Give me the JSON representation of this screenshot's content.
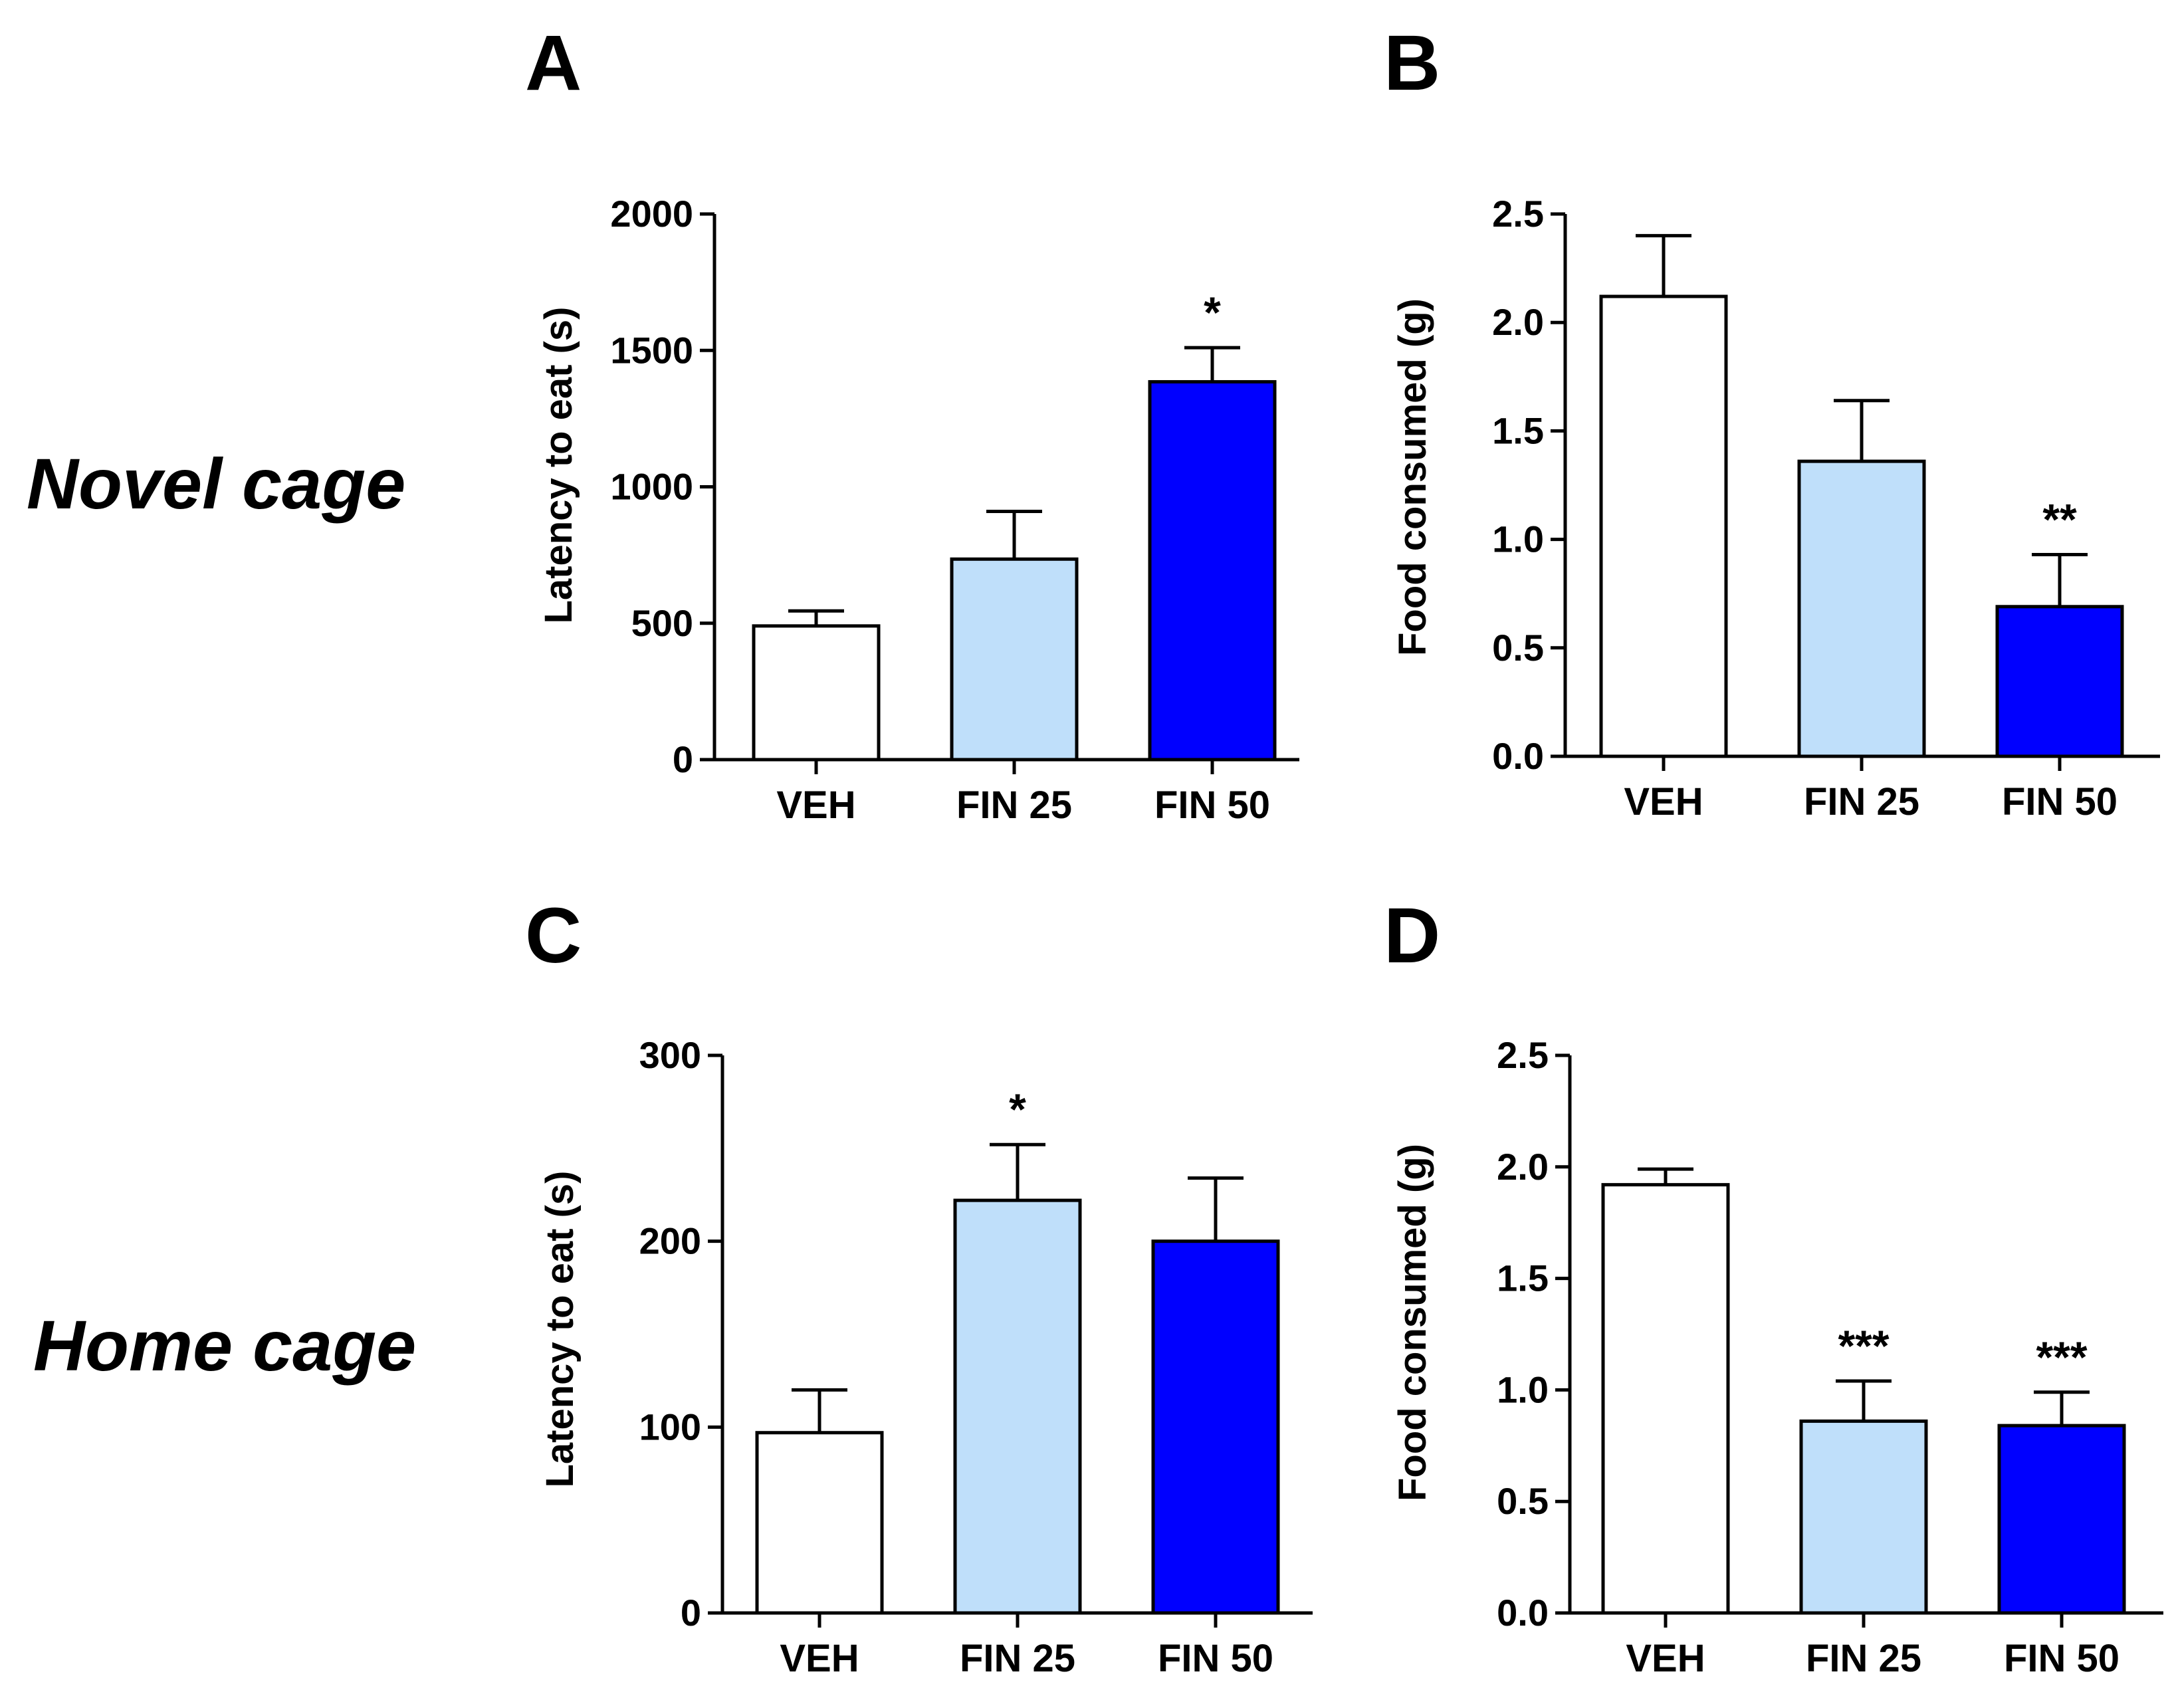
{
  "row_labels": {
    "top": "Novel cage",
    "bottom": "Home cage"
  },
  "colors": {
    "VEH": "#ffffff",
    "FIN 25": "#bfdffa",
    "FIN 50": "#0000ff",
    "stroke": "#000000"
  },
  "chart_data": [
    {
      "panel": "A",
      "type": "bar",
      "row": "Novel cage",
      "categories": [
        "VEH",
        "FIN 25",
        "FIN 50"
      ],
      "values": [
        490,
        735,
        1385
      ],
      "errors": [
        55,
        175,
        125
      ],
      "significance": [
        "",
        "",
        "*"
      ],
      "ylabel": "Latency to eat (s)",
      "ylim": [
        0,
        2000
      ],
      "yticks": [
        0,
        500,
        1000,
        1500,
        2000
      ],
      "ytick_labels": [
        "0",
        "500",
        "1000",
        "1500",
        "2000"
      ]
    },
    {
      "panel": "B",
      "type": "bar",
      "row": "Novel cage",
      "categories": [
        "VEH",
        "FIN 25",
        "FIN 50"
      ],
      "values": [
        2.12,
        1.36,
        0.69
      ],
      "errors": [
        0.28,
        0.28,
        0.24
      ],
      "significance": [
        "",
        "",
        "**"
      ],
      "ylabel": "Food consumed (g)",
      "ylim": [
        0,
        2.5
      ],
      "yticks": [
        0,
        0.5,
        1.0,
        1.5,
        2.0,
        2.5
      ],
      "ytick_labels": [
        "0.0",
        "0.5",
        "1.0",
        "1.5",
        "2.0",
        "2.5"
      ]
    },
    {
      "panel": "C",
      "type": "bar",
      "row": "Home cage",
      "categories": [
        "VEH",
        "FIN 25",
        "FIN 50"
      ],
      "values": [
        97,
        222,
        200
      ],
      "errors": [
        23,
        30,
        34
      ],
      "significance": [
        "",
        "*",
        ""
      ],
      "ylabel": "Latency to eat (s)",
      "ylim": [
        0,
        300
      ],
      "yticks": [
        0,
        100,
        200,
        300
      ],
      "ytick_labels": [
        "0",
        "100",
        "200",
        "300"
      ]
    },
    {
      "panel": "D",
      "type": "bar",
      "row": "Home cage",
      "categories": [
        "VEH",
        "FIN 25",
        "FIN 50"
      ],
      "values": [
        1.92,
        0.86,
        0.84
      ],
      "errors": [
        0.07,
        0.18,
        0.15
      ],
      "significance": [
        "",
        "***",
        "***"
      ],
      "ylabel": "Food consumed (g)",
      "ylim": [
        0,
        2.5
      ],
      "yticks": [
        0,
        0.5,
        1.0,
        1.5,
        2.0,
        2.5
      ],
      "ytick_labels": [
        "0.0",
        "0.5",
        "1.0",
        "1.5",
        "2.0",
        "2.5"
      ]
    }
  ]
}
